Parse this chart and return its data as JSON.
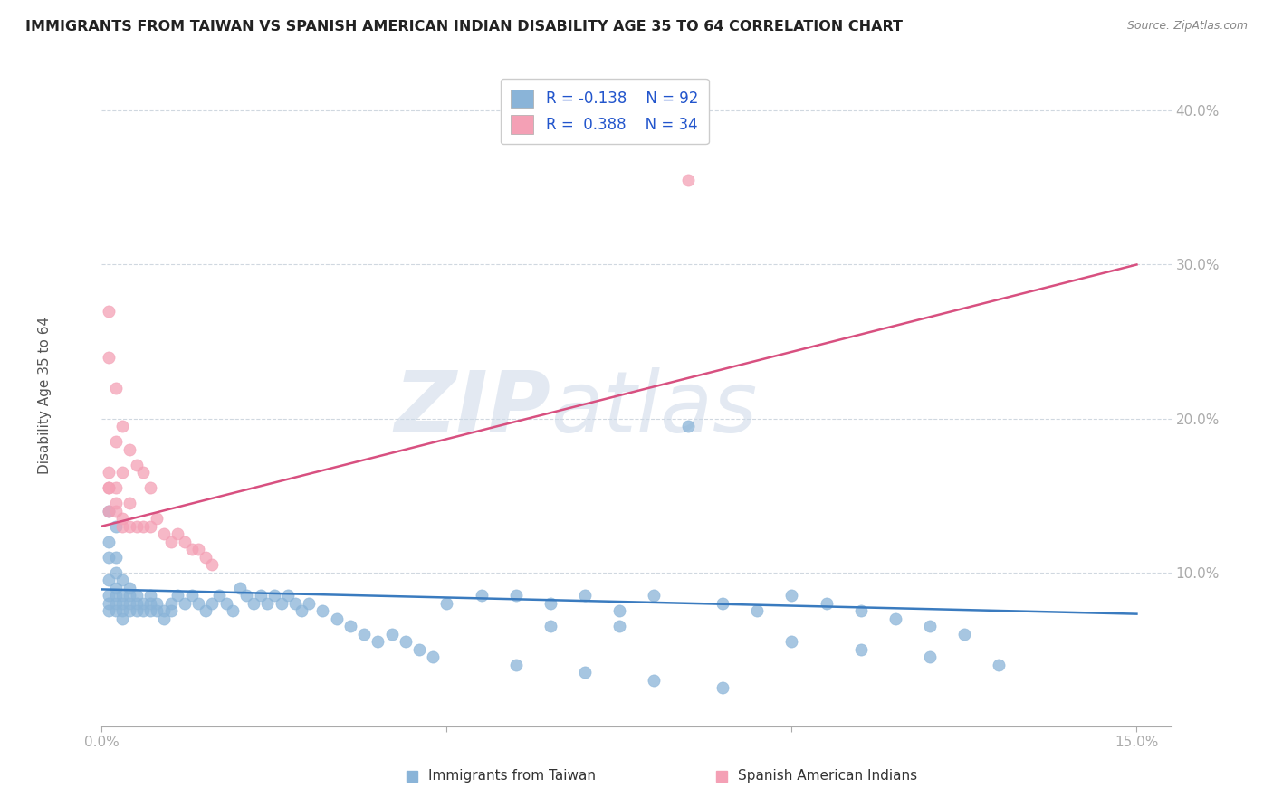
{
  "title": "IMMIGRANTS FROM TAIWAN VS SPANISH AMERICAN INDIAN DISABILITY AGE 35 TO 64 CORRELATION CHART",
  "source": "Source: ZipAtlas.com",
  "ylabel": "Disability Age 35 to 64",
  "xlim": [
    0.0,
    0.155
  ],
  "ylim": [
    0.0,
    0.43
  ],
  "x_ticks": [
    0.0,
    0.05,
    0.1,
    0.15
  ],
  "x_tick_labels": [
    "0.0%",
    "",
    "",
    "15.0%"
  ],
  "y_ticks": [
    0.0,
    0.1,
    0.2,
    0.3,
    0.4
  ],
  "y_tick_labels": [
    "",
    "10.0%",
    "20.0%",
    "30.0%",
    "40.0%"
  ],
  "legend_label1": "Immigrants from Taiwan",
  "legend_label2": "Spanish American Indians",
  "blue_color": "#8ab4d8",
  "pink_color": "#f4a0b5",
  "blue_line_color": "#3a7bbf",
  "pink_line_color": "#d85080",
  "r1": -0.138,
  "n1": 92,
  "r2": 0.388,
  "n2": 34,
  "watermark_zip": "ZIP",
  "watermark_atlas": "atlas",
  "blue_line_y0": 0.089,
  "blue_line_y1": 0.073,
  "pink_line_y0": 0.13,
  "pink_line_y1": 0.3,
  "blue_x": [
    0.001,
    0.001,
    0.001,
    0.001,
    0.001,
    0.001,
    0.001,
    0.002,
    0.002,
    0.002,
    0.002,
    0.002,
    0.002,
    0.002,
    0.003,
    0.003,
    0.003,
    0.003,
    0.003,
    0.004,
    0.004,
    0.004,
    0.004,
    0.005,
    0.005,
    0.005,
    0.006,
    0.006,
    0.007,
    0.007,
    0.007,
    0.008,
    0.008,
    0.009,
    0.009,
    0.01,
    0.01,
    0.011,
    0.012,
    0.013,
    0.014,
    0.015,
    0.016,
    0.017,
    0.018,
    0.019,
    0.02,
    0.021,
    0.022,
    0.023,
    0.024,
    0.025,
    0.026,
    0.027,
    0.028,
    0.029,
    0.03,
    0.032,
    0.034,
    0.036,
    0.038,
    0.04,
    0.042,
    0.044,
    0.046,
    0.048,
    0.05,
    0.055,
    0.06,
    0.065,
    0.07,
    0.075,
    0.08,
    0.09,
    0.095,
    0.1,
    0.105,
    0.11,
    0.115,
    0.12,
    0.125,
    0.085,
    0.06,
    0.07,
    0.08,
    0.09,
    0.1,
    0.11,
    0.12,
    0.13,
    0.065,
    0.075
  ],
  "blue_y": [
    0.14,
    0.12,
    0.11,
    0.095,
    0.085,
    0.08,
    0.075,
    0.13,
    0.11,
    0.1,
    0.09,
    0.085,
    0.08,
    0.075,
    0.095,
    0.085,
    0.08,
    0.075,
    0.07,
    0.09,
    0.085,
    0.08,
    0.075,
    0.085,
    0.08,
    0.075,
    0.08,
    0.075,
    0.085,
    0.08,
    0.075,
    0.08,
    0.075,
    0.075,
    0.07,
    0.08,
    0.075,
    0.085,
    0.08,
    0.085,
    0.08,
    0.075,
    0.08,
    0.085,
    0.08,
    0.075,
    0.09,
    0.085,
    0.08,
    0.085,
    0.08,
    0.085,
    0.08,
    0.085,
    0.08,
    0.075,
    0.08,
    0.075,
    0.07,
    0.065,
    0.06,
    0.055,
    0.06,
    0.055,
    0.05,
    0.045,
    0.08,
    0.085,
    0.085,
    0.08,
    0.085,
    0.075,
    0.085,
    0.08,
    0.075,
    0.085,
    0.08,
    0.075,
    0.07,
    0.065,
    0.06,
    0.195,
    0.04,
    0.035,
    0.03,
    0.025,
    0.055,
    0.05,
    0.045,
    0.04,
    0.065,
    0.065
  ],
  "pink_x": [
    0.001,
    0.001,
    0.001,
    0.001,
    0.001,
    0.002,
    0.002,
    0.002,
    0.002,
    0.003,
    0.003,
    0.003,
    0.004,
    0.004,
    0.005,
    0.005,
    0.006,
    0.006,
    0.007,
    0.007,
    0.008,
    0.009,
    0.01,
    0.011,
    0.012,
    0.013,
    0.014,
    0.015,
    0.016,
    0.001,
    0.002,
    0.003,
    0.085,
    0.004
  ],
  "pink_y": [
    0.27,
    0.24,
    0.165,
    0.155,
    0.14,
    0.22,
    0.185,
    0.155,
    0.14,
    0.195,
    0.165,
    0.13,
    0.18,
    0.145,
    0.17,
    0.13,
    0.165,
    0.13,
    0.155,
    0.13,
    0.135,
    0.125,
    0.12,
    0.125,
    0.12,
    0.115,
    0.115,
    0.11,
    0.105,
    0.155,
    0.145,
    0.135,
    0.355,
    0.13
  ]
}
